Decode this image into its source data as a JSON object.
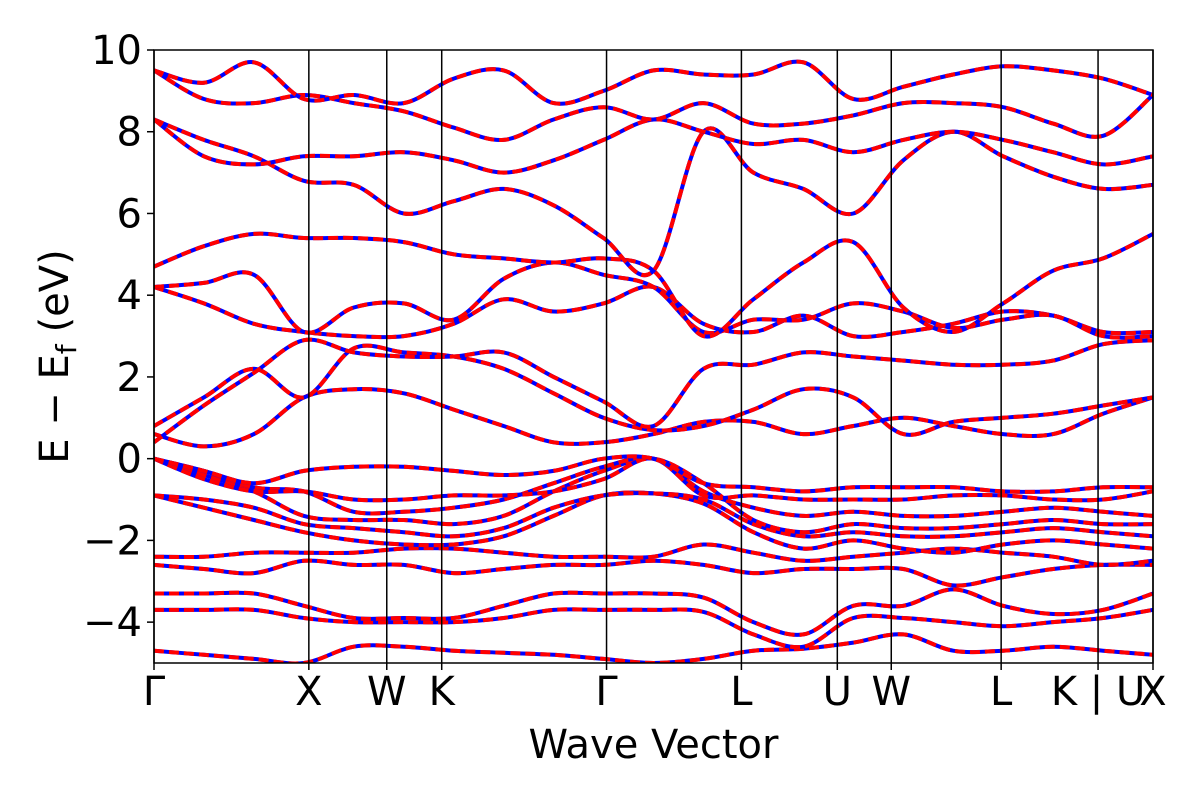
{
  "chart_data": {
    "type": "line",
    "xlabel": "Wave Vector",
    "ylabel_main": "E − E",
    "ylabel_sub": "f",
    "ylabel_unit": "(eV)",
    "ylim": [
      -5,
      10
    ],
    "yticks": [
      -4,
      -2,
      0,
      2,
      4,
      6,
      8,
      10
    ],
    "ytick_labels": [
      "−4",
      "−2",
      "0",
      "2",
      "4",
      "6",
      "8",
      "10"
    ],
    "xlim": [
      0,
      1
    ],
    "high_symmetry_points": [
      {
        "label": "Γ",
        "x": 0.0
      },
      {
        "label": "X",
        "x": 0.155
      },
      {
        "label": "W",
        "x": 0.233
      },
      {
        "label": "K",
        "x": 0.288
      },
      {
        "label": "Γ",
        "x": 0.453
      },
      {
        "label": "L",
        "x": 0.588
      },
      {
        "label": "U",
        "x": 0.684
      },
      {
        "label": "W",
        "x": 0.738
      },
      {
        "label": "L",
        "x": 0.848
      },
      {
        "label": "K | U",
        "x": 0.945
      },
      {
        "label": "X",
        "x": 1.0
      }
    ],
    "colors": {
      "series_a": "#0000ff",
      "series_b": "#ff0000",
      "axes": "#000000"
    },
    "bands": [
      [
        -4.7,
        -4.8,
        -4.9,
        -5.0,
        -4.6,
        -4.6,
        -4.7,
        -4.75,
        -4.8,
        -4.9,
        -5.0,
        -4.9,
        -4.7,
        -4.65,
        -4.5,
        -4.3,
        -4.7,
        -4.7,
        -4.6,
        -4.7,
        -4.8
      ],
      [
        -3.7,
        -3.7,
        -3.7,
        -3.9,
        -4.0,
        -4.0,
        -4.0,
        -3.9,
        -3.7,
        -3.7,
        -3.7,
        -3.75,
        -4.3,
        -4.6,
        -3.9,
        -3.9,
        -4.0,
        -4.1,
        -4.0,
        -3.9,
        -3.7
      ],
      [
        -3.3,
        -3.3,
        -3.3,
        -3.6,
        -3.9,
        -3.9,
        -3.9,
        -3.6,
        -3.3,
        -3.3,
        -3.3,
        -3.4,
        -4.0,
        -4.3,
        -3.6,
        -3.6,
        -3.2,
        -3.6,
        -3.8,
        -3.7,
        -3.3
      ],
      [
        -2.6,
        -2.7,
        -2.8,
        -2.5,
        -2.6,
        -2.6,
        -2.8,
        -2.7,
        -2.6,
        -2.6,
        -2.5,
        -2.6,
        -2.8,
        -2.7,
        -2.7,
        -2.7,
        -3.1,
        -2.9,
        -2.7,
        -2.6,
        -2.6
      ],
      [
        -2.4,
        -2.4,
        -2.3,
        -2.3,
        -2.3,
        -2.2,
        -2.2,
        -2.3,
        -2.4,
        -2.4,
        -2.4,
        -2.1,
        -2.3,
        -2.5,
        -2.4,
        -2.3,
        -2.2,
        -2.3,
        -2.4,
        -2.6,
        -2.5
      ],
      [
        -0.9,
        -1.2,
        -1.5,
        -1.8,
        -2.0,
        -2.1,
        -2.1,
        -1.9,
        -1.4,
        -0.9,
        -0.85,
        -1.1,
        -1.8,
        -2.2,
        -2.0,
        -2.2,
        -2.3,
        -2.1,
        -2.0,
        -2.1,
        -2.2
      ],
      [
        -0.9,
        -1.0,
        -1.2,
        -1.6,
        -1.7,
        -1.8,
        -1.9,
        -1.7,
        -1.2,
        -0.9,
        -0.85,
        -1.0,
        -1.6,
        -1.9,
        -1.8,
        -1.9,
        -1.9,
        -1.8,
        -1.7,
        -1.8,
        -1.9
      ],
      [
        0.0,
        -0.4,
        -0.8,
        -1.4,
        -1.5,
        -1.5,
        -1.6,
        -1.4,
        -0.8,
        -0.3,
        0.0,
        -0.6,
        -1.5,
        -1.8,
        -1.6,
        -1.7,
        -1.7,
        -1.6,
        -1.5,
        -1.6,
        -1.6
      ],
      [
        0.0,
        -0.3,
        -0.7,
        -0.8,
        -1.3,
        -1.3,
        -1.2,
        -1.0,
        -0.6,
        -0.2,
        0.0,
        -0.8,
        -1.2,
        -1.4,
        -1.3,
        -1.4,
        -1.4,
        -1.3,
        -1.2,
        -1.3,
        -1.4
      ],
      [
        0.0,
        -0.5,
        -0.8,
        -0.8,
        -1.0,
        -1.0,
        -0.9,
        -0.9,
        -0.8,
        -0.5,
        0.0,
        -0.9,
        -0.9,
        -1.0,
        -1.0,
        -1.0,
        -0.9,
        -0.9,
        -1.0,
        -1.0,
        -0.8
      ],
      [
        0.0,
        -0.3,
        -0.6,
        -0.3,
        -0.2,
        -0.2,
        -0.3,
        -0.4,
        -0.3,
        0.0,
        0.0,
        -0.6,
        -0.7,
        -0.8,
        -0.7,
        -0.7,
        -0.7,
        -0.8,
        -0.8,
        -0.7,
        -0.7
      ],
      [
        0.6,
        0.3,
        0.6,
        1.5,
        1.7,
        1.6,
        1.2,
        0.8,
        0.4,
        0.4,
        0.6,
        0.9,
        0.9,
        0.6,
        0.8,
        1.0,
        0.8,
        0.6,
        0.6,
        1.1,
        1.5
      ],
      [
        0.8,
        1.5,
        2.2,
        1.5,
        2.7,
        2.6,
        2.5,
        2.2,
        1.6,
        1.0,
        0.7,
        0.8,
        1.2,
        1.7,
        1.5,
        0.6,
        0.9,
        1.0,
        1.1,
        1.3,
        1.5
      ],
      [
        0.4,
        1.3,
        2.1,
        2.9,
        2.6,
        2.5,
        2.5,
        2.6,
        2.0,
        1.4,
        0.8,
        2.2,
        2.3,
        2.6,
        2.5,
        2.4,
        2.3,
        2.3,
        2.4,
        2.8,
        2.9
      ],
      [
        4.2,
        3.8,
        3.3,
        3.1,
        3.0,
        3.0,
        3.3,
        3.9,
        3.6,
        3.8,
        4.2,
        3.3,
        3.1,
        3.5,
        3.0,
        3.1,
        3.3,
        3.6,
        3.5,
        3.1,
        3.1
      ],
      [
        4.2,
        4.3,
        4.5,
        3.1,
        3.7,
        3.8,
        3.4,
        4.4,
        4.8,
        4.5,
        4.2,
        3.1,
        3.4,
        3.4,
        3.8,
        3.6,
        3.2,
        3.4,
        3.5,
        3.0,
        3.0
      ],
      [
        4.7,
        5.2,
        5.5,
        5.4,
        5.4,
        5.3,
        5.0,
        4.9,
        4.8,
        4.9,
        4.6,
        3.0,
        3.9,
        4.8,
        5.3,
        3.7,
        3.1,
        3.8,
        4.6,
        4.9,
        5.5
      ],
      [
        8.3,
        7.8,
        7.4,
        6.8,
        6.7,
        6.0,
        6.3,
        6.6,
        6.2,
        5.4,
        4.6,
        8.0,
        7.0,
        6.6,
        6.0,
        7.3,
        8.0,
        7.4,
        6.9,
        6.6,
        6.7
      ],
      [
        8.3,
        7.4,
        7.2,
        7.4,
        7.4,
        7.5,
        7.3,
        7.0,
        7.3,
        7.8,
        8.3,
        8.0,
        7.7,
        7.8,
        7.5,
        7.8,
        8.0,
        7.8,
        7.5,
        7.2,
        7.4
      ],
      [
        9.5,
        8.8,
        8.7,
        8.9,
        8.7,
        8.5,
        8.1,
        7.8,
        8.3,
        8.6,
        8.3,
        8.7,
        8.2,
        8.2,
        8.4,
        8.7,
        8.7,
        8.6,
        8.2,
        7.9,
        8.9
      ],
      [
        9.5,
        9.2,
        9.7,
        8.8,
        8.9,
        8.7,
        9.3,
        9.5,
        8.7,
        9.0,
        9.5,
        9.4,
        9.4,
        9.7,
        8.8,
        9.1,
        9.4,
        9.6,
        9.5,
        9.3,
        8.9
      ]
    ]
  }
}
